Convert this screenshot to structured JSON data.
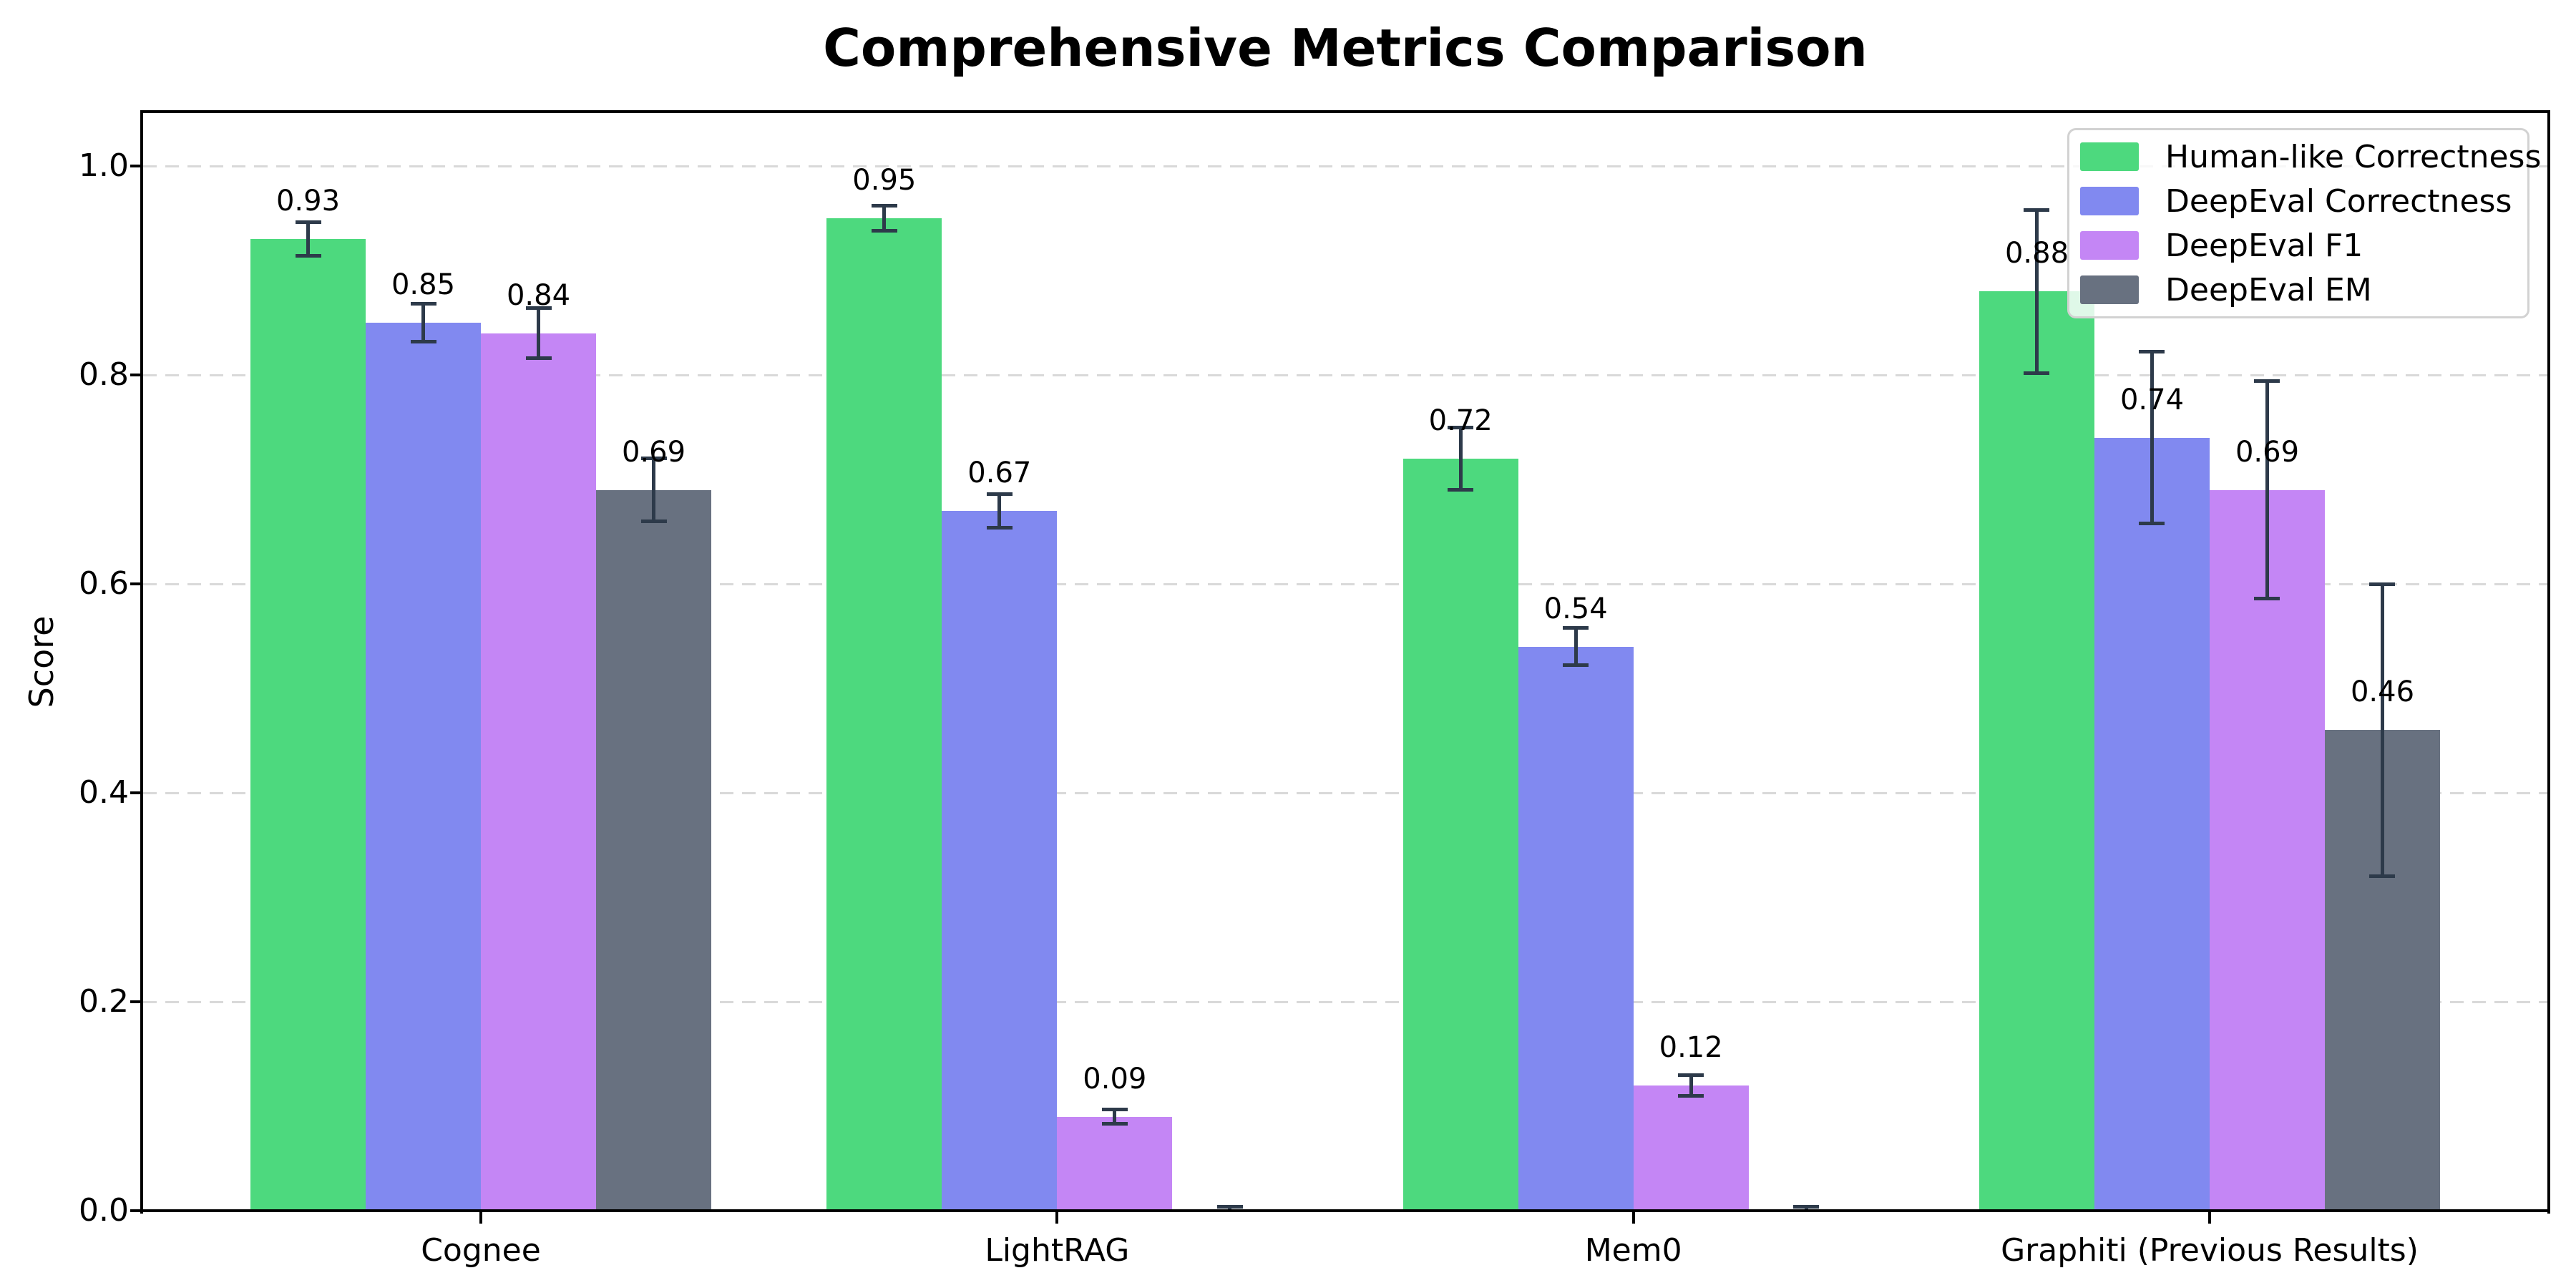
{
  "title": "Comprehensive Metrics Comparison",
  "chart_data": {
    "type": "bar",
    "title": "Comprehensive Metrics Comparison",
    "ylabel": "Score",
    "xlabel": "",
    "categories": [
      "Cognee",
      "LightRAG",
      "Mem0",
      "Graphiti (Previous Results)"
    ],
    "series": [
      {
        "name": "Human-like Correctness",
        "color": "#4dd97e",
        "values": [
          0.93,
          0.95,
          0.72,
          0.88
        ],
        "errors": [
          0.016,
          0.012,
          0.03,
          0.078
        ],
        "labels": [
          "0.93",
          "0.95",
          "0.72",
          "0.88"
        ]
      },
      {
        "name": "DeepEval Correctness",
        "color": "#8189f0",
        "values": [
          0.85,
          0.67,
          0.54,
          0.74
        ],
        "errors": [
          0.018,
          0.016,
          0.018,
          0.082
        ],
        "labels": [
          "0.85",
          "0.67",
          "0.54",
          "0.74"
        ]
      },
      {
        "name": "DeepEval F1",
        "color": "#c486f5",
        "values": [
          0.84,
          0.09,
          0.12,
          0.69
        ],
        "errors": [
          0.024,
          0.007,
          0.01,
          0.104
        ],
        "labels": [
          "0.84",
          "0.09",
          "0.12",
          "0.69"
        ]
      },
      {
        "name": "DeepEval EM",
        "color": "#687180",
        "values": [
          0.69,
          0.0,
          0.0,
          0.46
        ],
        "errors": [
          0.03,
          0.004,
          0.004,
          0.14
        ],
        "labels": [
          "0.69",
          null,
          null,
          "0.46"
        ]
      }
    ],
    "yticks": [
      0.0,
      0.2,
      0.4,
      0.6,
      0.8,
      1.0
    ],
    "ytick_labels": [
      "0.0",
      "0.2",
      "0.4",
      "0.6",
      "0.8",
      "1.0"
    ],
    "ylim": [
      0,
      1.051
    ],
    "grid": "dashed-horizontal",
    "legend_position": "upper-right",
    "errorbar_color": "#2d3a4a"
  }
}
